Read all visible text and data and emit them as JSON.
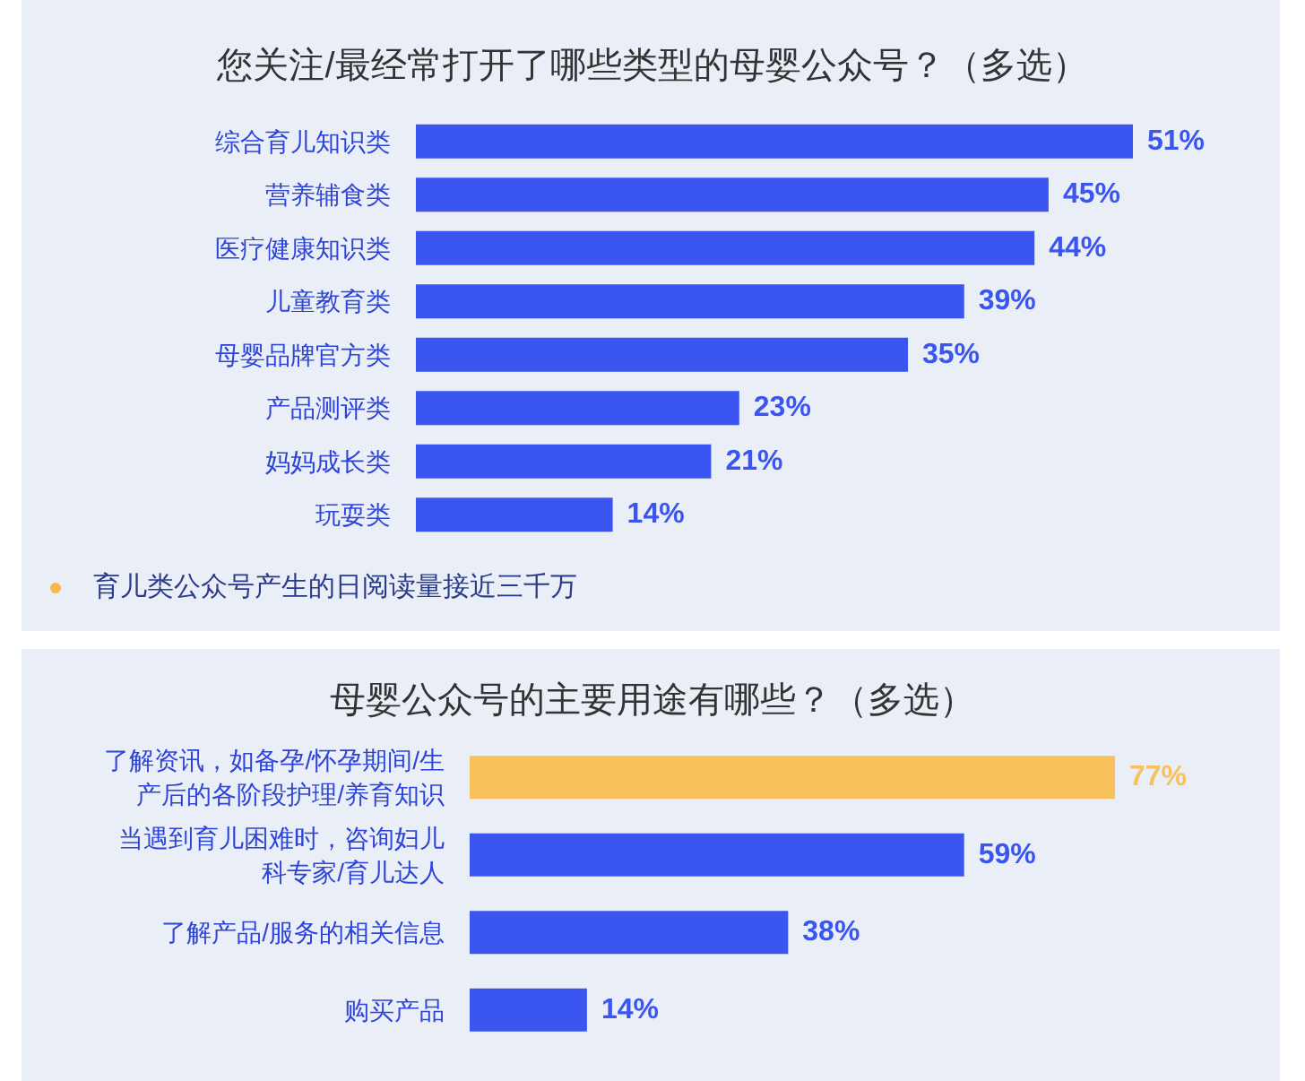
{
  "chart_data": [
    {
      "type": "bar",
      "orientation": "horizontal",
      "title": "您关注/最经常打开了哪些类型的母婴公众号？（多选）",
      "categories": [
        "综合育儿知识类",
        "营养辅食类",
        "医疗健康知识类",
        "儿童教育类",
        "母婴品牌官方类",
        "产品测评类",
        "妈妈成长类",
        "玩耍类"
      ],
      "values": [
        51,
        45,
        44,
        39,
        35,
        23,
        21,
        14
      ],
      "value_labels": [
        "51%",
        "45%",
        "44%",
        "39%",
        "35%",
        "23%",
        "21%",
        "14%"
      ],
      "color": "#3a55f0",
      "annotations": [
        "育儿类公众号产生的日阅读量接近三千万"
      ]
    },
    {
      "type": "bar",
      "orientation": "horizontal",
      "title": "母婴公众号的主要用途有哪些？（多选）",
      "categories": [
        "了解资讯，如备孕/怀孕期间/生产后的各阶段护理/养育知识",
        "当遇到育儿困难时，咨询妇儿科专家/育儿达人",
        "了解产品/服务的相关信息",
        "购买产品"
      ],
      "values": [
        77,
        59,
        38,
        14
      ],
      "value_labels": [
        "77%",
        "59%",
        "38%",
        "14%"
      ],
      "colors": [
        "#f8c15c",
        "#3a55f0",
        "#3a55f0",
        "#3a55f0"
      ]
    }
  ]
}
